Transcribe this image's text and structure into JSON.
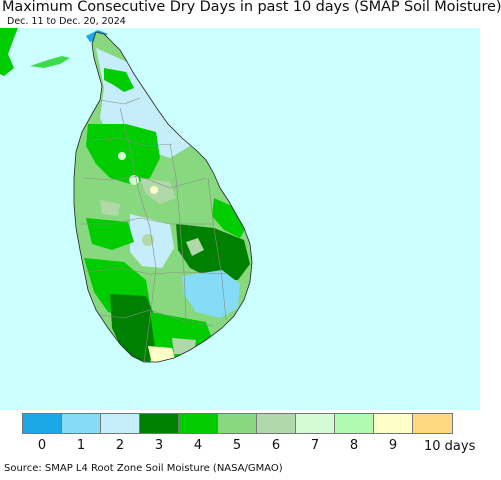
{
  "header": {
    "title": "Maximum Consecutive Dry Days in past 10 days (SMAP Soil Moisture)",
    "subtitle": "Dec. 11 to Dec. 20, 2024"
  },
  "map": {
    "background_color": "#ccffff",
    "region": "Sri Lanka"
  },
  "legend": {
    "items": [
      {
        "label": "0",
        "color": "#1ba7e8"
      },
      {
        "label": "1",
        "color": "#84dcf7"
      },
      {
        "label": "2",
        "color": "#c6eefa"
      },
      {
        "label": "3",
        "color": "#008000"
      },
      {
        "label": "4",
        "color": "#00cc00"
      },
      {
        "label": "5",
        "color": "#88d87f"
      },
      {
        "label": "6",
        "color": "#b0d8a8"
      },
      {
        "label": "7",
        "color": "#d4fcd4"
      },
      {
        "label": "8",
        "color": "#b0fbb0"
      },
      {
        "label": "9",
        "color": "#ffffc8"
      },
      {
        "label": "",
        "color": "#ffd97f"
      }
    ],
    "last_label": "10 days"
  },
  "footer": {
    "source": "Source: SMAP L4 Root Zone Soil Moisture (NASA/GMAO)"
  }
}
